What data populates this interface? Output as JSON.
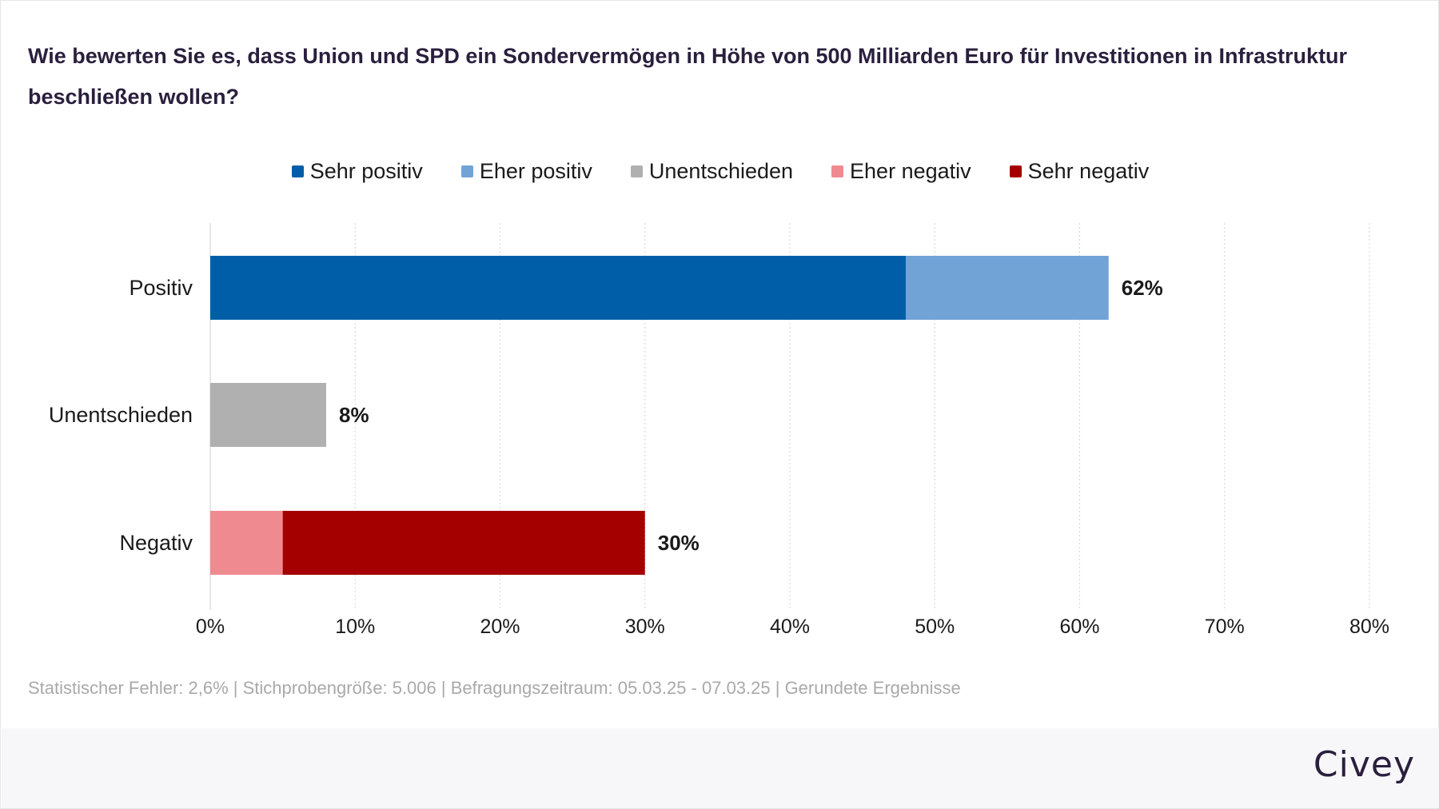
{
  "title": "Wie bewerten Sie es, dass Union und SPD ein Sondervermögen in Höhe von 500 Milliarden Euro für Investitionen in Infrastruktur beschließen wollen?",
  "legend": [
    {
      "label": "Sehr positiv",
      "color": "#005ea8"
    },
    {
      "label": "Eher positiv",
      "color": "#72a3d7"
    },
    {
      "label": "Unentschieden",
      "color": "#b0b0b0"
    },
    {
      "label": "Eher negativ",
      "color": "#f08a91"
    },
    {
      "label": "Sehr negativ",
      "color": "#a50000"
    }
  ],
  "chart_data": {
    "type": "bar",
    "orientation": "horizontal",
    "stacked": true,
    "categories": [
      "Positiv",
      "Unentschieden",
      "Negativ"
    ],
    "series": [
      {
        "name": "Sehr positiv",
        "color": "#005ea8",
        "values": [
          48,
          0,
          0
        ]
      },
      {
        "name": "Eher positiv",
        "color": "#72a3d7",
        "values": [
          14,
          0,
          0
        ]
      },
      {
        "name": "Unentschieden",
        "color": "#b0b0b0",
        "values": [
          0,
          8,
          0
        ]
      },
      {
        "name": "Eher negativ",
        "color": "#f08a91",
        "values": [
          0,
          0,
          5
        ]
      },
      {
        "name": "Sehr negativ",
        "color": "#a50000",
        "values": [
          0,
          0,
          25
        ]
      }
    ],
    "totals": [
      "62%",
      "8%",
      "30%"
    ],
    "xlim": [
      0,
      80
    ],
    "xticks": [
      0,
      10,
      20,
      30,
      40,
      50,
      60,
      70,
      80
    ],
    "xtick_labels": [
      "0%",
      "10%",
      "20%",
      "30%",
      "40%",
      "50%",
      "60%",
      "70%",
      "80%"
    ],
    "grid": "vertical-dotted",
    "legend_position": "top-center"
  },
  "footnote": "Statistischer Fehler: 2,6% | Stichprobengröße: 5.006 | Befragungszeitraum: 05.03.25 - 07.03.25 | Gerundete Ergebnisse",
  "brand": {
    "name": "Civey",
    "color": "#2a1f3d"
  }
}
